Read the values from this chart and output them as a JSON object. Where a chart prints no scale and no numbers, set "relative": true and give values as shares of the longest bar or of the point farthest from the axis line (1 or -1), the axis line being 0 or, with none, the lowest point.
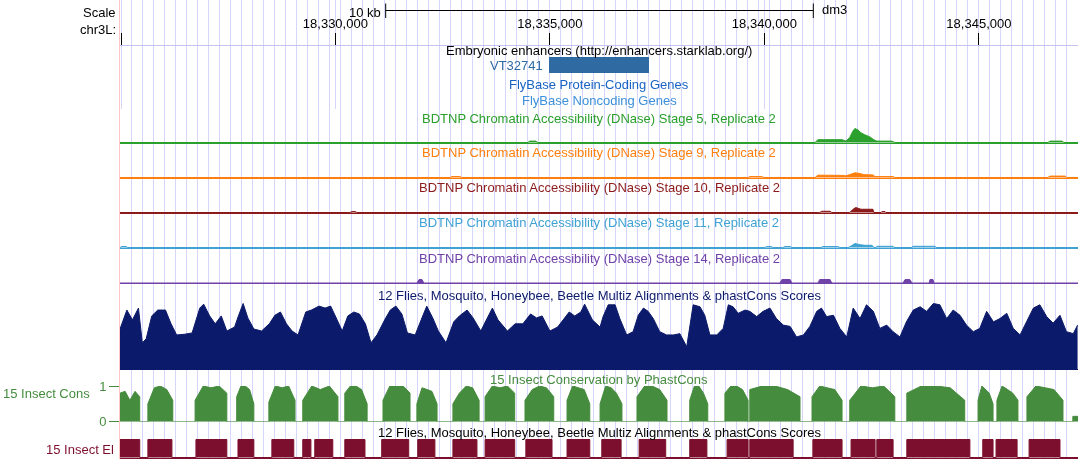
{
  "chart_data": [
    {
      "type": "bar",
      "orientation": "horizontal",
      "title": "Embryonic enhancers (http://enhancers.starklab.org/)",
      "xlabel": "chr3L:",
      "categories": [
        "VT32741"
      ],
      "base": [
        18334980
      ],
      "values": [
        2330
      ],
      "color": "#2f6aa3",
      "xlim": [
        18324980,
        18347310
      ],
      "xticks": [
        {
          "value": 18325020,
          "label": null
        },
        {
          "value": 18330000,
          "label": "18,330,000"
        },
        {
          "value": 18335000,
          "label": "18,335,000"
        },
        {
          "value": 18340000,
          "label": "18,340,000"
        },
        {
          "value": 18345000,
          "label": "18,345,000"
        }
      ],
      "annotations": [
        "Scale",
        "10 kb",
        "dm3",
        "FlyBase Protein-Coding Genes",
        "FlyBase Noncoding Genes"
      ],
      "grid": "x"
    },
    {
      "type": "area",
      "relative": true,
      "title": "BDTNP Chromatin Accessibility (DNase) Stage 5, Replicate 2",
      "color": "#2ca02c",
      "x": [
        18324980,
        18334490,
        18334530,
        18334670,
        18334720,
        18341180,
        18341250,
        18341810,
        18341900,
        18341990,
        18342060,
        18342110,
        18342180,
        18342250,
        18342340,
        18342460,
        18342550,
        18342620,
        18342970,
        18343040,
        18346610,
        18346660,
        18346940,
        18346980,
        18347310
      ],
      "values": [
        0,
        0,
        0.1,
        0.1,
        0,
        0,
        0.2,
        0.2,
        0.1,
        0.35,
        0.8,
        1,
        0.9,
        0.7,
        0.55,
        0.4,
        0.2,
        0.1,
        0.1,
        0,
        0,
        0.1,
        0.1,
        0,
        0
      ],
      "xlim": [
        18324980,
        18347310
      ],
      "tick_labels": false,
      "grid": "x"
    },
    {
      "type": "area",
      "relative": true,
      "title": "BDTNP Chromatin Accessibility (DNase) Stage 9, Replicate 2",
      "color": "#ff7f0e",
      "x": [
        18324980,
        18332670,
        18332720,
        18332900,
        18332950,
        18339620,
        18339660,
        18339940,
        18339990,
        18341180,
        18341250,
        18341810,
        18341900,
        18342020,
        18342110,
        18342230,
        18342320,
        18342530,
        18342580,
        18343000,
        18343040,
        18346610,
        18346660,
        18347010,
        18347050,
        18347310
      ],
      "values": [
        0,
        0,
        0.2,
        0.2,
        0,
        0,
        0.2,
        0.2,
        0,
        0,
        0.5,
        0.45,
        0.35,
        0.7,
        1,
        0.85,
        0.6,
        0.55,
        0.2,
        0.2,
        0,
        0,
        0.3,
        0.3,
        0,
        0
      ],
      "xlim": [
        18324980,
        18347310
      ],
      "tick_labels": false,
      "grid": "x"
    },
    {
      "type": "area",
      "relative": true,
      "title": "BDTNP Chromatin Accessibility (DNase) Stage 10, Replicate 2",
      "color": "#8c1a1a",
      "x": [
        18324980,
        18330340,
        18330390,
        18330460,
        18330500,
        18341290,
        18341340,
        18341530,
        18341570,
        18341990,
        18342060,
        18342130,
        18342200,
        18342250,
        18342530,
        18342550,
        18342720,
        18342740,
        18342810,
        18342830,
        18347310
      ],
      "values": [
        0,
        0,
        0.2,
        0.2,
        0,
        0,
        0.25,
        0.25,
        0,
        0,
        0.6,
        1,
        0.8,
        0.65,
        0.65,
        0,
        0,
        0.2,
        0.2,
        0,
        0
      ],
      "xlim": [
        18324980,
        18347310
      ],
      "tick_labels": false,
      "grid": "x"
    },
    {
      "type": "area",
      "relative": true,
      "title": "BDTNP Chromatin Accessibility (DNase) Stage 11, Replicate 2",
      "color": "#3fa2d3",
      "x": [
        18324980,
        18325020,
        18325120,
        18325160,
        18340010,
        18340060,
        18340150,
        18340200,
        18340430,
        18340480,
        18340600,
        18340640,
        18341320,
        18341360,
        18341710,
        18341760,
        18341950,
        18342020,
        18342110,
        18342230,
        18342340,
        18342510,
        18342550,
        18342600,
        18342620,
        18343000,
        18343020,
        18343440,
        18343460,
        18343980,
        18344000,
        18347310
      ],
      "values": [
        0,
        0.25,
        0.25,
        0,
        0,
        0.25,
        0.25,
        0,
        0,
        0.25,
        0.25,
        0,
        0,
        0.25,
        0.25,
        0,
        0,
        0.35,
        1,
        0.7,
        0.55,
        0.55,
        0,
        0,
        0.3,
        0.3,
        0,
        0,
        0.3,
        0.3,
        0,
        0
      ],
      "xlim": [
        18324980,
        18347310
      ],
      "tick_labels": false,
      "grid": "x"
    },
    {
      "type": "area",
      "relative": true,
      "title": "BDTNP Chromatin Accessibility (DNase) Stage 14, Replicate 2",
      "color": "#6f42a8",
      "x": [
        18324980,
        18331900,
        18331950,
        18332020,
        18332060,
        18340360,
        18340410,
        18340600,
        18340640,
        18341250,
        18341290,
        18341530,
        18341570,
        18343230,
        18343280,
        18343390,
        18343440,
        18343840,
        18343860,
        18343930,
        18343950,
        18347310
      ],
      "values": [
        0,
        0,
        1,
        1,
        0,
        0,
        1,
        1,
        0,
        0,
        1,
        1,
        0,
        0,
        1,
        1,
        0,
        0,
        1,
        1,
        0,
        0
      ],
      "xlim": [
        18324980,
        18347310
      ],
      "tick_labels": false,
      "grid": "x"
    },
    {
      "type": "area",
      "relative": true,
      "title": "12 Flies, Mosquito, Honeybee, Beetle Multiz Alignments & phastCons Scores",
      "color": "#0c1a6b",
      "x": [
        18324980,
        18325140,
        18325270,
        18325410,
        18325500,
        18325590,
        18325720,
        18325860,
        18326040,
        18326170,
        18326300,
        18326480,
        18326660,
        18326840,
        18326930,
        18327070,
        18327200,
        18327340,
        18327470,
        18327650,
        18327740,
        18327850,
        18327960,
        18328100,
        18328280,
        18328460,
        18328590,
        18328720,
        18328860,
        18328990,
        18329130,
        18329310,
        18329440,
        18329620,
        18329760,
        18329890,
        18330020,
        18330160,
        18330290,
        18330430,
        18330560,
        18330700,
        18330830,
        18330970,
        18331150,
        18331280,
        18331410,
        18331550,
        18331680,
        18331860,
        18332000,
        18332130,
        18332270,
        18332400,
        18332580,
        18332760,
        18332890,
        18333070,
        18333210,
        18333390,
        18333520,
        18333660,
        18333790,
        18334010,
        18334190,
        18334370,
        18334550,
        18334690,
        18334820,
        18335000,
        18335180,
        18335450,
        18335580,
        18335720,
        18335810,
        18335990,
        18336170,
        18336240,
        18336360,
        18336520,
        18336630,
        18336790,
        18336940,
        18337060,
        18337180,
        18337290,
        18337410,
        18337560,
        18337720,
        18337880,
        18338030,
        18338190,
        18338340,
        18338500,
        18338610,
        18338730,
        18338890,
        18339040,
        18339160,
        18339270,
        18339390,
        18339550,
        18339660,
        18339820,
        18339970,
        18340130,
        18340280,
        18340440,
        18340600,
        18340750,
        18340910,
        18341060,
        18341220,
        18341330,
        18341450,
        18341610,
        18341760,
        18341920,
        18342070,
        18342230,
        18342380,
        18342540,
        18342690,
        18342850,
        18343000,
        18343160,
        18343310,
        18343470,
        18343630,
        18343780,
        18343940,
        18344090,
        18344250,
        18344400,
        18344560,
        18344710,
        18344870,
        18345020,
        18345180,
        18345340,
        18345490,
        18345650,
        18345800,
        18345960,
        18346110,
        18346270,
        18346420,
        18346580,
        18346730,
        18346890,
        18347040,
        18347200,
        18347300
      ],
      "values": [
        0.61,
        0.9,
        0.75,
        0.93,
        0.4,
        0.46,
        0.81,
        0.9,
        0.9,
        0.69,
        0.52,
        0.53,
        0.55,
        0.93,
        0.99,
        0.81,
        0.69,
        0.81,
        0.58,
        0.64,
        0.81,
        1.0,
        0.78,
        0.61,
        0.58,
        0.69,
        0.82,
        0.87,
        0.69,
        0.58,
        0.52,
        0.87,
        0.9,
        0.96,
        0.93,
        0.96,
        0.78,
        0.58,
        0.81,
        0.87,
        0.84,
        0.69,
        0.4,
        0.52,
        0.75,
        0.9,
        0.96,
        0.84,
        0.55,
        0.52,
        0.75,
        0.96,
        0.78,
        0.58,
        0.4,
        0.72,
        0.81,
        0.9,
        0.78,
        0.58,
        0.75,
        0.93,
        0.75,
        0.58,
        0.69,
        0.69,
        0.84,
        0.78,
        0.81,
        0.58,
        0.64,
        0.87,
        0.81,
        0.87,
        0.99,
        0.75,
        0.64,
        0.8,
        0.98,
        0.98,
        0.77,
        0.52,
        0.57,
        0.82,
        0.93,
        0.88,
        0.77,
        0.57,
        0.52,
        0.52,
        0.54,
        0.34,
        0.98,
        0.95,
        0.82,
        0.52,
        0.52,
        0.62,
        0.98,
        0.95,
        0.85,
        0.9,
        0.88,
        0.8,
        0.88,
        0.93,
        0.77,
        0.67,
        0.65,
        0.49,
        0.52,
        0.65,
        0.88,
        0.93,
        0.8,
        0.82,
        0.62,
        0.49,
        0.93,
        0.77,
        0.98,
        0.88,
        0.62,
        0.67,
        0.57,
        0.49,
        0.72,
        0.9,
        0.95,
        0.88,
        1.0,
        0.98,
        0.77,
        0.9,
        0.82,
        0.67,
        0.57,
        0.62,
        0.88,
        0.72,
        0.77,
        0.85,
        0.62,
        0.52,
        0.72,
        0.93,
        0.98,
        0.8,
        0.7,
        0.82,
        0.57,
        0.54,
        0.67
      ],
      "xlim": [
        18324980,
        18347310
      ],
      "tick_labels": false,
      "grid": "x"
    },
    {
      "type": "area",
      "title": "15 Insect Conservation by PhastCons",
      "ylabel": "15 Insect Cons",
      "color": "#468c3e",
      "x": [
        18324980,
        18325100,
        18325210,
        18325330,
        18325440,
        18325440,
        18325630,
        18325630,
        18325780,
        18325920,
        18326070,
        18326210,
        18326210,
        18326730,
        18326730,
        18326920,
        18327100,
        18327290,
        18327470,
        18327470,
        18327700,
        18327700,
        18327800,
        18327900,
        18328000,
        18328100,
        18328100,
        18328450,
        18328450,
        18328600,
        18328760,
        18328910,
        18329060,
        18329060,
        18329240,
        18329240,
        18329450,
        18329650,
        18329860,
        18330060,
        18330060,
        18330220,
        18330220,
        18330350,
        18330480,
        18330610,
        18330740,
        18330740,
        18331110,
        18331110,
        18331270,
        18331430,
        18331580,
        18331740,
        18331740,
        18331900,
        18331900,
        18332020,
        18332140,
        18332250,
        18332370,
        18332370,
        18332740,
        18332740,
        18332890,
        18333050,
        18333200,
        18333350,
        18333350,
        18333490,
        18333490,
        18333660,
        18333840,
        18334010,
        18334180,
        18334180,
        18334420,
        18334420,
        18334590,
        18334760,
        18334920,
        18335090,
        18335090,
        18335400,
        18335400,
        18335530,
        18335670,
        18335800,
        18335930,
        18335930,
        18336170,
        18336170,
        18336300,
        18336430,
        18336550,
        18336680,
        18336680,
        18337030,
        18337030,
        18337210,
        18337380,
        18337560,
        18337730,
        18337730,
        18338260,
        18338260,
        18338370,
        18338470,
        18338580,
        18338680,
        18338680,
        18339080,
        18339080,
        18339220,
        18339350,
        18339490,
        18339620,
        18339620,
        18339660,
        18339660,
        18339950,
        18340250,
        18340540,
        18340830,
        18340830,
        18341110,
        18341110,
        18341290,
        18341460,
        18341640,
        18341810,
        18341810,
        18341990,
        18341990,
        18342250,
        18342520,
        18342780,
        18343040,
        18343040,
        18343320,
        18343320,
        18343660,
        18344000,
        18344330,
        18344670,
        18344670,
        18344980,
        18344980,
        18345070,
        18345160,
        18345240,
        18345330,
        18345330,
        18345420,
        18345420,
        18345540,
        18345670,
        18345790,
        18345910,
        18345910,
        18346120,
        18346120,
        18346330,
        18346540,
        18346750,
        18346960,
        18346960,
        18347190,
        18347190,
        18347310
      ],
      "values": [
        0.8,
        0.85,
        0.6,
        0.85,
        0.7,
        0,
        0,
        0.5,
        0.95,
        1,
        0.9,
        0.6,
        0,
        0,
        0.6,
        1,
        0.95,
        1,
        0.8,
        0,
        0,
        0.7,
        1,
        1,
        0.9,
        0.5,
        0,
        0,
        0.55,
        1,
        0.95,
        1,
        0.6,
        0,
        0,
        0.6,
        1,
        0.9,
        1,
        0.7,
        0,
        0,
        0.8,
        1,
        1,
        0.9,
        0.5,
        0,
        0,
        0.6,
        1,
        1,
        1,
        0.8,
        0,
        0,
        0.5,
        0.95,
        0.9,
        0.85,
        0.5,
        0,
        0,
        0.5,
        0.8,
        1,
        0.95,
        0.6,
        0,
        0,
        0.7,
        1,
        0.95,
        1,
        0.8,
        0,
        0,
        0.6,
        0.9,
        1,
        0.95,
        0.7,
        0,
        0,
        0.6,
        1,
        0.95,
        0.9,
        0.5,
        0,
        0,
        0.5,
        1,
        0.95,
        0.8,
        0.5,
        0,
        0,
        0.7,
        1,
        1,
        0.9,
        0.6,
        0,
        0,
        0.6,
        1,
        1,
        0.8,
        0.5,
        0,
        0,
        0.8,
        1,
        1,
        0.9,
        0.6,
        0,
        0,
        0.9,
        1,
        1,
        0.9,
        0.7,
        0,
        0,
        0.7,
        1,
        0.95,
        0.9,
        0.6,
        0,
        0,
        0.6,
        1,
        0.95,
        1,
        0.7,
        0,
        0,
        0.8,
        1,
        1,
        0.95,
        0.6,
        0,
        0,
        0.6,
        1,
        0.9,
        0.8,
        0.5,
        0,
        0,
        0.6,
        1,
        0.9,
        0.8,
        0.6,
        0,
        0,
        0.7,
        1,
        0.95,
        0.9,
        0.6,
        0,
        0,
        0.15,
        0.15
      ],
      "xlim": [
        18324980,
        18347310
      ],
      "ylim": [
        0,
        1
      ],
      "yticks": [
        0,
        1
      ],
      "tick_labels": "y",
      "grid": "x"
    },
    {
      "type": "area",
      "relative": true,
      "title": "12 Flies, Mosquito, Honeybee, Beetle Multiz Alignments & phastCons Scores",
      "ylabel": "15 Insect El",
      "color": "#7d0f2e",
      "x": [
        18324980,
        18325440,
        18325440,
        18325630,
        18325630,
        18326190,
        18326190,
        18326750,
        18326750,
        18327470,
        18327470,
        18327730,
        18327730,
        18328100,
        18328100,
        18328520,
        18328520,
        18329030,
        18329030,
        18329240,
        18329240,
        18329430,
        18329430,
        18329520,
        18329520,
        18329940,
        18329940,
        18330220,
        18330220,
        18330690,
        18330690,
        18331080,
        18331080,
        18331710,
        18331710,
        18331920,
        18331920,
        18332320,
        18332320,
        18332740,
        18332740,
        18333300,
        18333300,
        18333490,
        18333490,
        18334180,
        18334180,
        18334440,
        18334440,
        18335050,
        18335050,
        18335400,
        18335400,
        18335930,
        18335930,
        18336210,
        18336210,
        18336660,
        18336660,
        18337080,
        18337080,
        18337700,
        18337700,
        18338260,
        18338260,
        18338660,
        18338660,
        18339130,
        18339130,
        18339620,
        18339620,
        18339660,
        18339660,
        18340670,
        18340670,
        18341130,
        18341130,
        18341810,
        18341810,
        18342020,
        18342020,
        18342580,
        18342580,
        18342620,
        18342620,
        18343000,
        18343000,
        18343320,
        18343320,
        18344790,
        18344790,
        18345090,
        18345090,
        18345330,
        18345330,
        18345400,
        18345400,
        18345890,
        18345890,
        18346170,
        18346170,
        18346890,
        18346890,
        18347310
      ],
      "values": [
        1,
        1,
        0,
        0,
        1,
        1,
        0,
        0,
        1,
        1,
        0,
        0,
        1,
        1,
        0,
        0,
        1,
        1,
        0,
        0,
        1,
        1,
        0,
        0,
        1,
        1,
        0,
        0,
        1,
        1,
        0,
        0,
        1,
        1,
        0,
        0,
        1,
        1,
        0,
        0,
        1,
        1,
        0,
        0,
        1,
        1,
        0,
        0,
        1,
        1,
        0,
        0,
        1,
        1,
        0,
        0,
        1,
        1,
        0,
        0,
        1,
        1,
        0,
        0,
        1,
        1,
        0,
        0,
        1,
        1,
        0,
        0,
        1,
        1,
        0,
        0,
        1,
        1,
        0,
        0,
        1,
        1,
        0,
        0,
        1,
        1,
        0,
        0,
        1,
        1,
        0,
        0,
        1,
        1,
        0,
        0,
        1,
        1,
        0,
        0,
        1,
        1,
        0,
        0
      ],
      "xlim": [
        18324980,
        18347310
      ],
      "tick_labels": false,
      "grid": "x"
    }
  ]
}
